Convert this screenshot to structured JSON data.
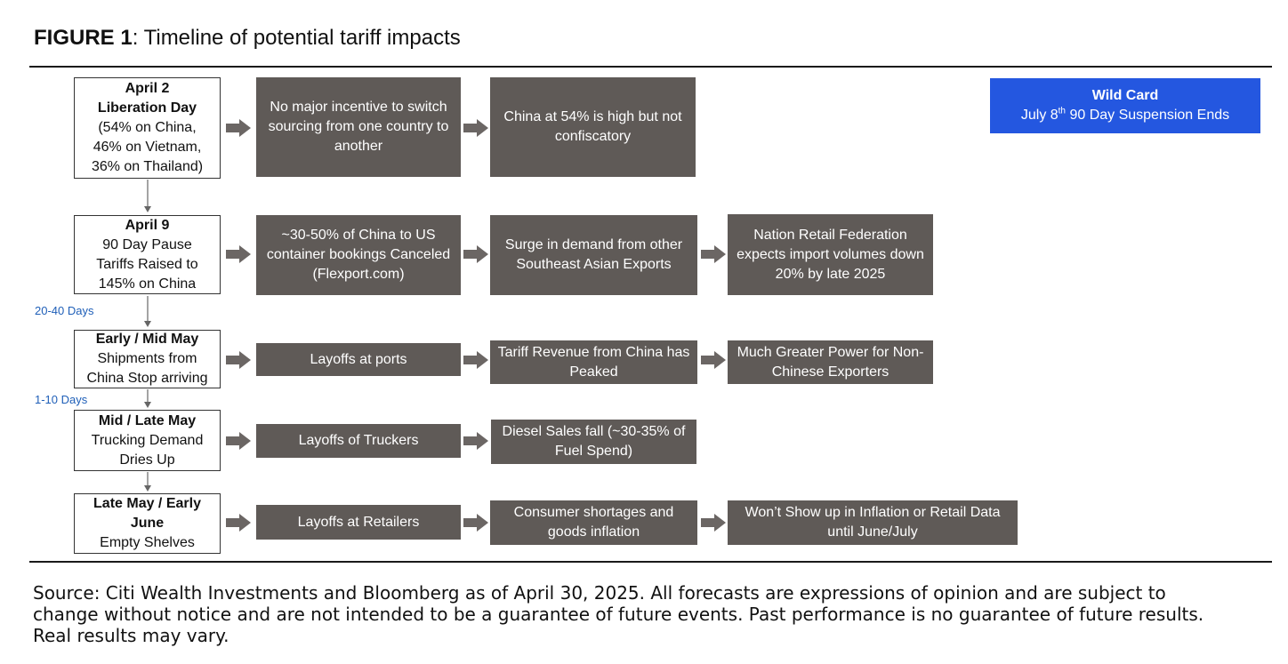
{
  "figure": {
    "label": "FIGURE 1",
    "title": ": Timeline of potential tariff impacts"
  },
  "colors": {
    "gray_box": "#5f5a57",
    "wild_card": "#2457e0",
    "days_text": "#1f5fb8",
    "arrow": "#6b6664"
  },
  "stages": [
    {
      "heading": [
        "April 2",
        "Liberation Day"
      ],
      "body": [
        "(54% on China,",
        "46% on Vietnam,",
        "36% on Thailand)"
      ]
    },
    {
      "heading": [
        "April 9"
      ],
      "body": [
        "90 Day Pause",
        "Tariffs Raised to",
        "145% on China"
      ]
    },
    {
      "heading": [
        "Early / Mid May"
      ],
      "body": [
        "Shipments from",
        "China Stop arriving"
      ]
    },
    {
      "heading": [
        "Mid / Late May"
      ],
      "body": [
        "Trucking Demand",
        "Dries Up"
      ]
    },
    {
      "heading": [
        "Late May / Early",
        "June"
      ],
      "body": [
        "Empty Shelves"
      ]
    }
  ],
  "impacts": [
    [
      "No major incentive to switch sourcing from one country to another",
      "China at 54% is high but not confiscatory"
    ],
    [
      "~30-50% of China to US container bookings Canceled (Flexport.com)",
      "Surge in demand from other Southeast Asian Exports",
      "Nation Retail Federation expects import volumes down 20% by late 2025"
    ],
    [
      "Layoffs at ports",
      "Tariff Revenue from China has Peaked",
      "Much Greater Power for Non-Chinese Exporters"
    ],
    [
      "Layoffs of Truckers",
      "Diesel Sales fall (~30-35% of Fuel Spend)"
    ],
    [
      "Layoffs at Retailers",
      "Consumer shortages and goods inflation",
      "Won’t Show up in Inflation or Retail Data until June/July"
    ]
  ],
  "durations": {
    "between_2_3": "20-40 Days",
    "between_3_4": "1-10 Days"
  },
  "wild_card": {
    "heading": "Wild Card",
    "line_pre": "July 8",
    "line_sup": "th",
    "line_post": " 90 Day Suspension Ends"
  },
  "source": "Source: Citi Wealth Investments and Bloomberg as of April 30, 2025. All forecasts are expressions of opinion and are subject to change without notice and are not intended to be a guarantee of future events. Past performance is no guarantee of future results. Real results may vary."
}
